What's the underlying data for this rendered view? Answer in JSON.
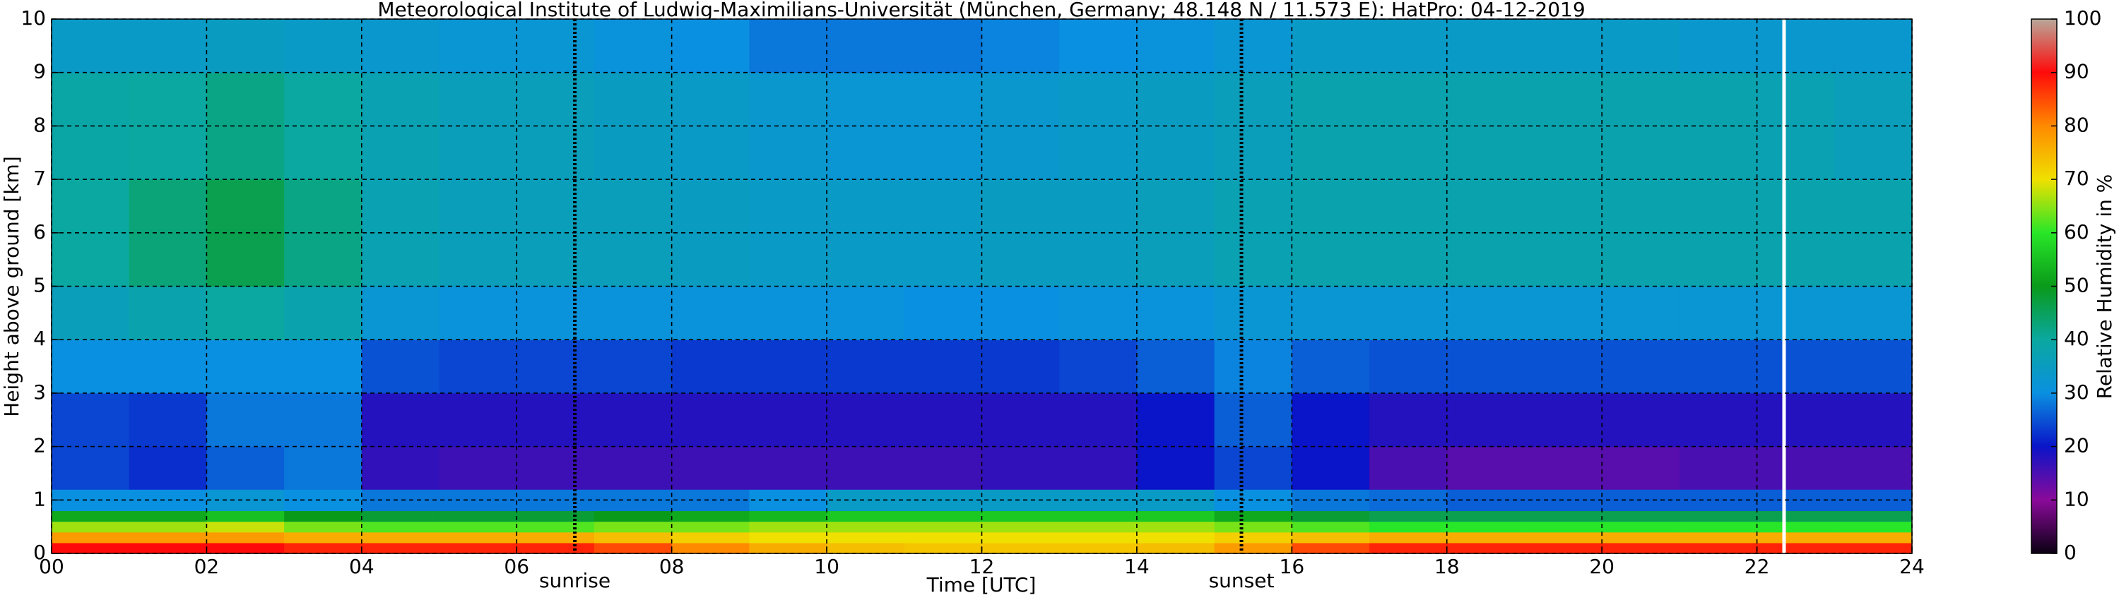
{
  "chart_data": {
    "type": "heatmap",
    "title": "Meteorological Institute of Ludwig-Maximilians-Universität (München, Germany; 48.148 N / 11.573 E):    HatPro: 04-12-2019",
    "xlabel": "Time [UTC]",
    "ylabel": "Height above ground [km]",
    "colorbar_label": "Relative Humidity in %",
    "xlim": [
      0,
      24
    ],
    "ylim": [
      0,
      10
    ],
    "xticks": [
      {
        "value": 0,
        "label": "00"
      },
      {
        "value": 2,
        "label": "02"
      },
      {
        "value": 4,
        "label": "04"
      },
      {
        "value": 6,
        "label": "06"
      },
      {
        "value": 8,
        "label": "08"
      },
      {
        "value": 10,
        "label": "10"
      },
      {
        "value": 12,
        "label": "12"
      },
      {
        "value": 14,
        "label": "14"
      },
      {
        "value": 16,
        "label": "16"
      },
      {
        "value": 18,
        "label": "18"
      },
      {
        "value": 20,
        "label": "20"
      },
      {
        "value": 22,
        "label": "22"
      },
      {
        "value": 24,
        "label": "24"
      }
    ],
    "yticks": [
      0,
      1,
      2,
      3,
      4,
      5,
      6,
      7,
      8,
      9,
      10
    ],
    "clim": [
      0,
      100
    ],
    "cticks": [
      0,
      10,
      20,
      30,
      40,
      50,
      60,
      70,
      80,
      90,
      100
    ],
    "colors": [
      "#0a0012",
      "#8a0a9a",
      "#0a14c8",
      "#0a90e0",
      "#0aa8a0",
      "#0a9a1a",
      "#28e628",
      "#f0e000",
      "#ff8a00",
      "#ff0a0a",
      "#b8a89a"
    ],
    "grid": true,
    "annotations": [
      {
        "text": "sunrise",
        "x": 6.75
      },
      {
        "text": "sunset",
        "x": 15.35
      }
    ],
    "gaps": [
      22.35
    ],
    "x_bins": [
      0,
      1,
      2,
      3,
      4,
      5,
      6,
      7,
      8,
      9,
      10,
      11,
      12,
      13,
      14,
      15,
      16,
      17,
      18,
      19,
      20,
      21,
      22,
      23,
      24
    ],
    "y_bins": [
      0,
      0.2,
      0.4,
      0.6,
      0.8,
      1.2,
      2,
      3,
      4,
      5,
      7,
      9,
      10
    ],
    "z": [
      [
        90,
        90,
        90,
        88,
        88,
        88,
        88,
        85,
        80,
        76,
        74,
        73,
        73,
        73,
        74,
        78,
        85,
        88,
        88,
        88,
        88,
        88,
        88,
        88
      ],
      [
        78,
        78,
        78,
        76,
        76,
        76,
        76,
        74,
        72,
        70,
        70,
        70,
        70,
        70,
        70,
        72,
        74,
        76,
        76,
        76,
        76,
        76,
        76,
        76
      ],
      [
        66,
        66,
        68,
        64,
        62,
        62,
        62,
        64,
        64,
        66,
        66,
        66,
        66,
        66,
        66,
        64,
        62,
        60,
        60,
        60,
        60,
        60,
        60,
        60
      ],
      [
        52,
        52,
        55,
        50,
        48,
        48,
        48,
        50,
        52,
        54,
        56,
        56,
        56,
        56,
        56,
        52,
        48,
        46,
        46,
        46,
        46,
        46,
        46,
        46
      ],
      [
        30,
        30,
        32,
        30,
        28,
        28,
        28,
        28,
        28,
        30,
        34,
        34,
        34,
        34,
        34,
        30,
        28,
        27,
        26,
        26,
        26,
        26,
        26,
        26
      ],
      [
        24,
        22,
        26,
        28,
        17,
        16,
        16,
        16,
        16,
        16,
        16,
        16,
        17,
        17,
        20,
        24,
        20,
        15,
        14,
        14,
        14,
        15,
        15,
        15
      ],
      [
        24,
        23,
        28,
        28,
        18,
        18,
        18,
        18,
        18,
        18,
        18,
        18,
        18,
        18,
        20,
        26,
        20,
        18,
        18,
        18,
        18,
        18,
        18,
        18
      ],
      [
        30,
        30,
        30,
        30,
        25,
        24,
        24,
        24,
        23,
        23,
        23,
        23,
        23,
        24,
        26,
        29,
        26,
        25,
        25,
        25,
        25,
        25,
        25,
        25
      ],
      [
        36,
        38,
        40,
        38,
        32,
        31,
        31,
        31,
        31,
        31,
        31,
        30,
        30,
        31,
        31,
        32,
        32,
        32,
        32,
        32,
        32,
        32,
        32,
        32
      ],
      [
        40,
        43,
        46,
        42,
        37,
        36,
        36,
        36,
        35,
        34,
        34,
        34,
        35,
        35,
        36,
        37,
        38,
        38,
        38,
        38,
        38,
        38,
        38,
        38
      ],
      [
        39,
        40,
        42,
        40,
        37,
        36,
        36,
        35,
        34,
        33,
        32,
        32,
        33,
        34,
        35,
        36,
        38,
        38,
        38,
        38,
        38,
        38,
        37,
        36
      ],
      [
        34,
        34,
        35,
        34,
        33,
        32,
        32,
        31,
        30,
        28,
        28,
        28,
        29,
        30,
        31,
        32,
        34,
        34,
        34,
        34,
        34,
        33,
        33,
        33
      ]
    ]
  }
}
